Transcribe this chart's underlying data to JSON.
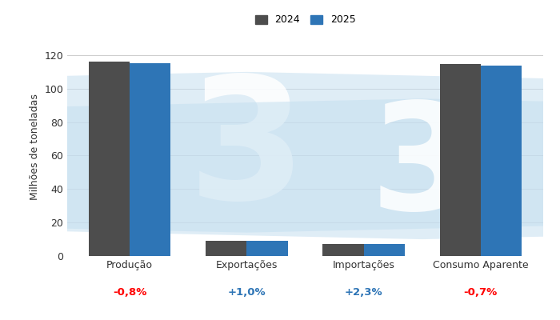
{
  "categories": [
    "Produção",
    "Exportações",
    "Importações",
    "Consumo Aparente"
  ],
  "values_2024": [
    116.0,
    9.0,
    7.0,
    114.5
  ],
  "values_2025": [
    115.1,
    9.1,
    7.2,
    113.7
  ],
  "color_2024": "#4d4d4d",
  "color_2025": "#2e75b6",
  "ylabel": "Milhões de toneladas",
  "ylim": [
    0,
    130
  ],
  "yticks": [
    0,
    20,
    40,
    60,
    80,
    100,
    120
  ],
  "legend_labels": [
    "2024",
    "2025"
  ],
  "percent_changes": [
    "-0,8%",
    "+1,0%",
    "+2,3%",
    "-0,7%"
  ],
  "percent_colors": [
    "red",
    "#2e75b6",
    "#2e75b6",
    "red"
  ],
  "background_color": "#ffffff",
  "grid_color": "#cccccc"
}
